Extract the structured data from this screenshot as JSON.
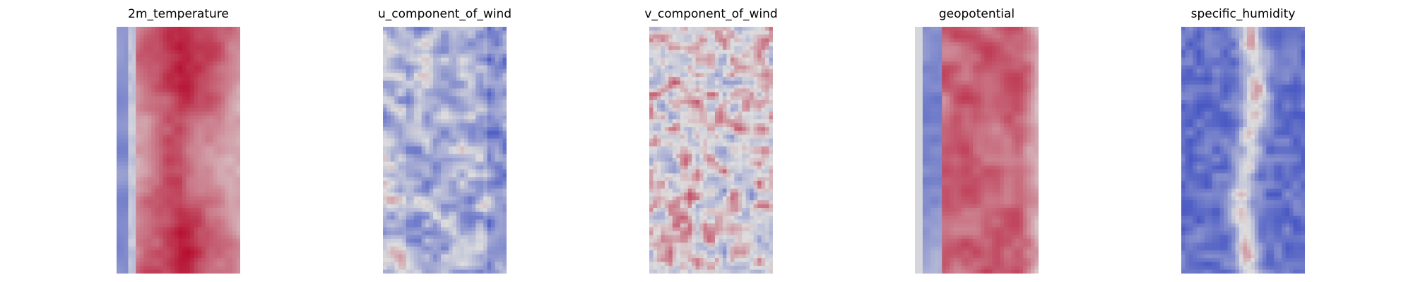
{
  "chart_data": [
    {
      "type": "heatmap",
      "title": "2m_temperature",
      "colormap": "coolwarm",
      "grid": false,
      "axes_visible": false,
      "pattern": "cold narrow strip at far left, strong warm band across center, cooling toward right edge"
    },
    {
      "type": "heatmap",
      "title": "u_component_of_wind",
      "colormap": "coolwarm",
      "grid": false,
      "axes_visible": false,
      "pattern": "predominantly light blue field with scattered weak warm streaks"
    },
    {
      "type": "heatmap",
      "title": "v_component_of_wind",
      "colormap": "coolwarm",
      "grid": false,
      "axes_visible": false,
      "pattern": "near-neutral field with small alternating warm and cool eddies"
    },
    {
      "type": "heatmap",
      "title": "geopotential",
      "colormap": "coolwarm",
      "grid": false,
      "axes_visible": false,
      "pattern": "cool blue strip at left, broad warm red band across center, cooling toward right"
    },
    {
      "type": "heatmap",
      "title": "specific_humidity",
      "colormap": "coolwarm",
      "grid": false,
      "axes_visible": false,
      "pattern": "cool blue background with a narrow warm vertical plume near center"
    }
  ],
  "colors": {
    "cold": "#3b4cc0",
    "neutral": "#dddddd",
    "warm": "#b40426"
  }
}
